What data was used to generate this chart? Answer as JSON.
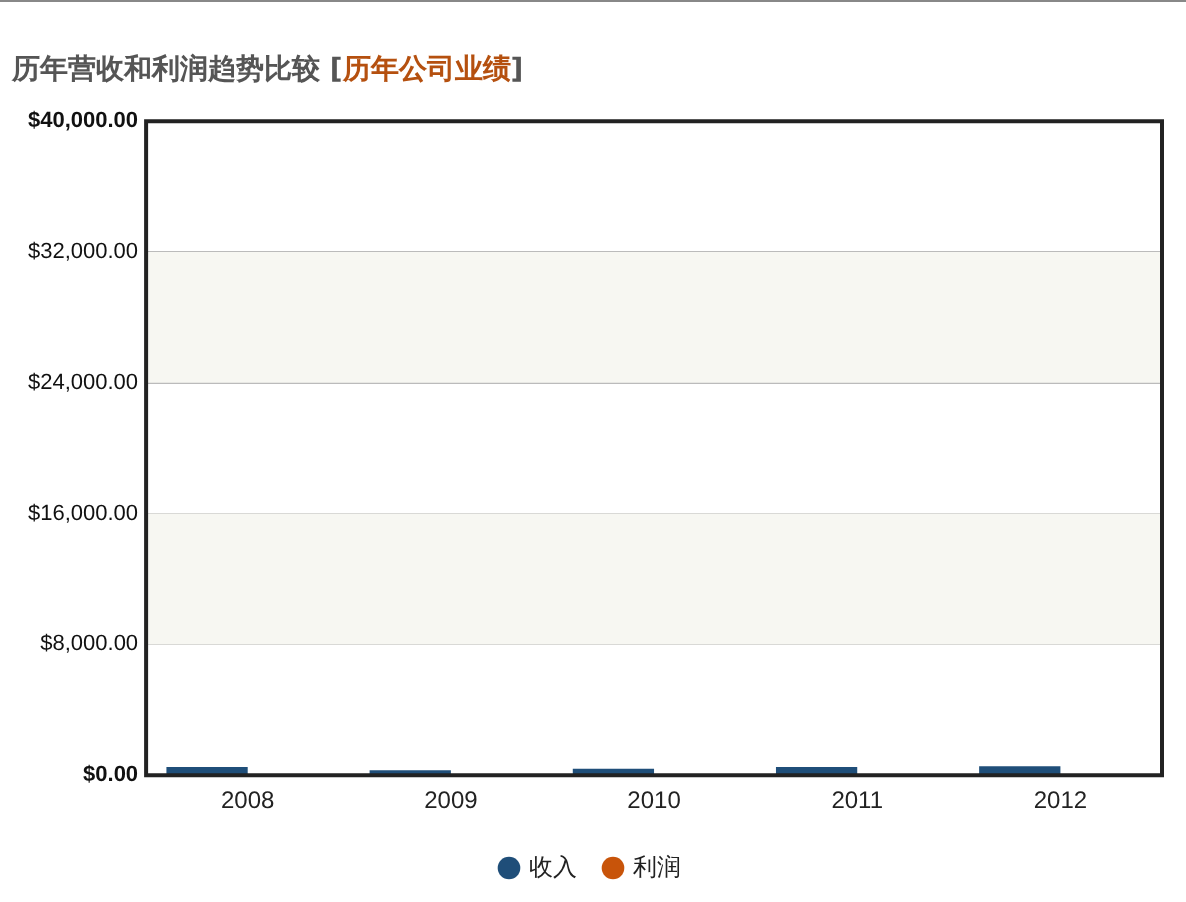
{
  "chart_data": {
    "type": "bar",
    "title": "历年营收和利润趋势比较 [历年公司业绩]",
    "categories": [
      "2008",
      "2009",
      "2010",
      "2011",
      "2012"
    ],
    "series": [
      {
        "name": "收入",
        "color": "#1f4e79",
        "values": [
          500,
          300,
          400,
          500,
          550
        ]
      },
      {
        "name": "利润",
        "color": "#c8540a",
        "values": [
          0,
          0,
          0,
          0,
          0
        ]
      }
    ],
    "ylim": [
      0,
      40000
    ],
    "yticks": [
      {
        "value": 0,
        "label": "$0.00"
      },
      {
        "value": 8000,
        "label": "$8,000.00"
      },
      {
        "value": 16000,
        "label": "$16,000.00"
      },
      {
        "value": 24000,
        "label": "$24,000.00"
      },
      {
        "value": 32000,
        "label": "$32,000.00"
      },
      {
        "value": 40000,
        "label": "$40,000.00"
      }
    ],
    "grid": "y",
    "legend": "bottom"
  }
}
